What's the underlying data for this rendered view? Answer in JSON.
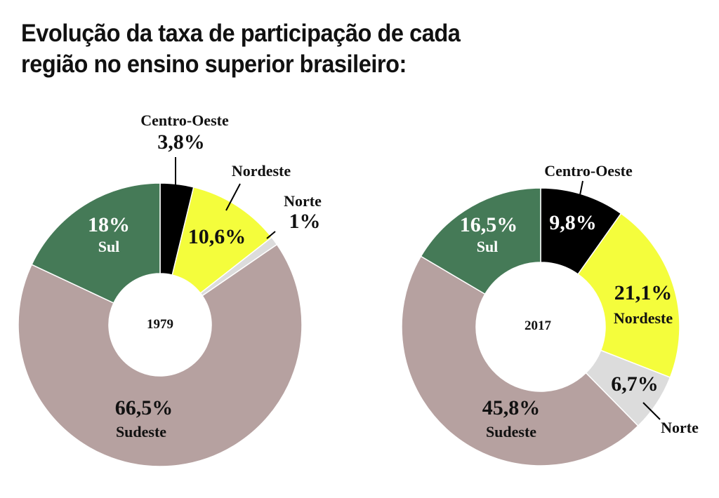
{
  "title_line1": "Evolução da taxa de participação de cada",
  "title_line2": "região no ensino superior brasileiro:",
  "chart_data": [
    {
      "type": "pie",
      "center_label": "1979",
      "categories": [
        "Centro-Oeste",
        "Nordeste",
        "Norte",
        "Sudeste",
        "Sul"
      ],
      "values": [
        3.8,
        10.6,
        1,
        66.5,
        18
      ],
      "value_labels": [
        "3,8%",
        "10,6%",
        "1%",
        "66,5%",
        "18%"
      ],
      "colors": [
        "#000000",
        "#f4fd3c",
        "#dcdcdc",
        "#b6a1a0",
        "#457a57"
      ]
    },
    {
      "type": "pie",
      "center_label": "2017",
      "categories": [
        "Centro-Oeste",
        "Nordeste",
        "Norte",
        "Sudeste",
        "Sul"
      ],
      "values": [
        9.8,
        21.1,
        6.7,
        45.8,
        16.5
      ],
      "value_labels": [
        "9,8%",
        "21,1%",
        "6,7%",
        "45,8%",
        "16,5%"
      ],
      "colors": [
        "#000000",
        "#f4fd3c",
        "#dcdcdc",
        "#b6a1a0",
        "#457a57"
      ]
    }
  ]
}
